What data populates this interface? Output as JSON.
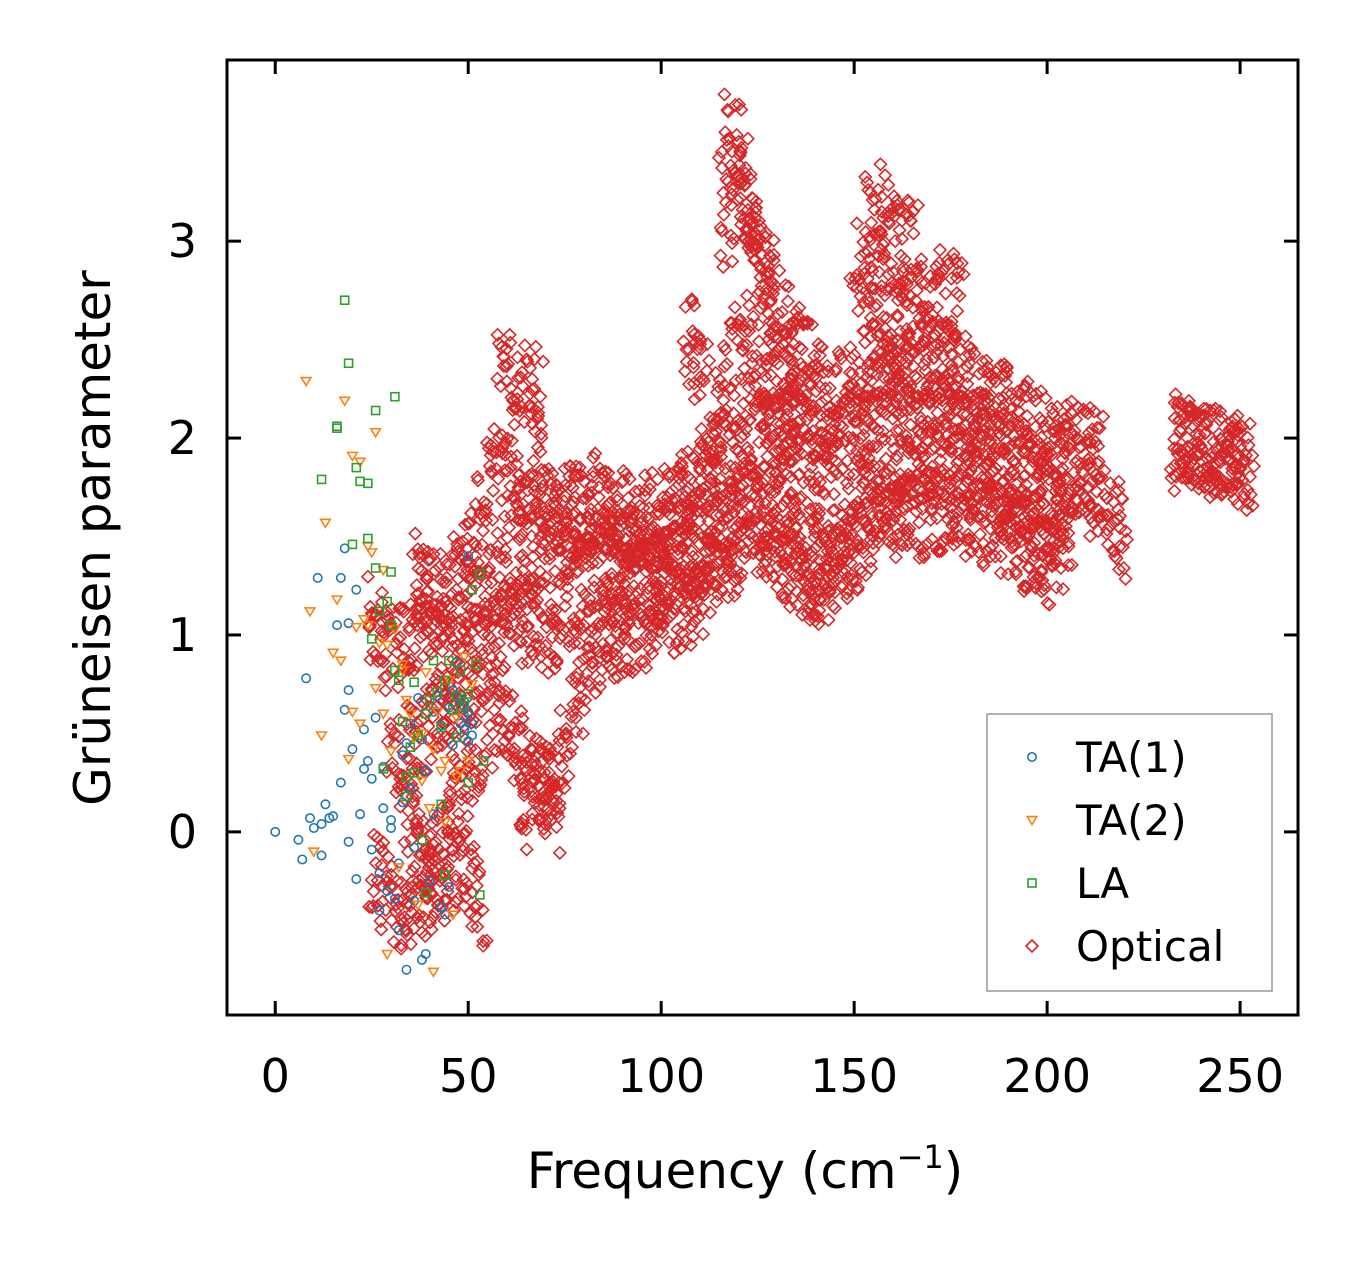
{
  "chart_data": {
    "type": "scatter",
    "xlabel": "Frequency (cm",
    "xlabel_sup": "−1",
    "xlabel_end": ")",
    "ylabel": "Grüneisen parameter",
    "xlim": [
      -12.5,
      265
    ],
    "ylim": [
      -0.93,
      3.92
    ],
    "xticks": [
      0,
      50,
      100,
      150,
      200,
      250
    ],
    "yticks": [
      0,
      1,
      2,
      3
    ],
    "legend_position": "lower-right",
    "series": [
      {
        "name": "TA(1)",
        "marker": "circle",
        "color": "#1f77b4",
        "x": [
          0,
          6,
          7,
          9,
          11,
          12,
          13,
          15,
          16,
          17,
          18,
          18,
          19,
          19,
          20,
          21,
          22,
          23,
          24,
          25,
          25,
          26,
          27,
          28,
          28,
          29,
          30,
          31,
          32,
          33,
          33,
          34,
          35,
          35,
          36,
          37,
          38,
          39,
          40,
          41,
          41,
          42,
          43,
          44,
          45,
          46,
          46,
          47,
          48,
          48,
          49,
          49,
          50,
          50,
          50,
          51,
          51,
          8,
          10,
          12,
          14,
          17,
          19,
          21,
          23,
          27,
          30,
          32,
          36,
          39,
          43,
          47,
          34,
          38,
          45,
          49
        ],
        "y": [
          0.0,
          -0.04,
          -0.14,
          0.07,
          1.29,
          0.04,
          0.14,
          0.08,
          1.05,
          1.29,
          0.62,
          1.44,
          -0.05,
          0.72,
          0.42,
          1.23,
          0.09,
          0.52,
          0.36,
          0.27,
          -0.09,
          0.58,
          -0.4,
          0.12,
          0.33,
          -0.3,
          0.02,
          -0.34,
          -0.16,
          0.15,
          0.39,
          0.45,
          0.55,
          0.22,
          -0.35,
          0.68,
          0.47,
          0.31,
          -0.25,
          0.61,
          0.09,
          0.69,
          0.54,
          -0.42,
          0.63,
          0.72,
          0.44,
          0.48,
          0.55,
          0.67,
          0.52,
          0.59,
          0.46,
          1.4,
          0.61,
          0.55,
          0.49,
          0.78,
          0.02,
          -0.12,
          0.07,
          0.25,
          1.06,
          -0.24,
          0.32,
          -0.21,
          0.06,
          -0.5,
          -0.08,
          -0.62,
          -0.38,
          0.86,
          -0.7,
          -0.65,
          -0.28,
          0.66
        ]
      },
      {
        "name": "TA(2)",
        "marker": "triangle-down",
        "color": "#ff7f0e",
        "x": [
          8,
          9,
          10,
          13,
          15,
          17,
          18,
          19,
          20,
          21,
          22,
          23,
          24,
          25,
          26,
          27,
          28,
          28,
          29,
          30,
          31,
          32,
          33,
          34,
          35,
          36,
          37,
          38,
          39,
          40,
          41,
          42,
          43,
          44,
          45,
          46,
          47,
          48,
          49,
          50,
          51,
          24,
          26,
          29,
          33,
          38,
          41,
          44,
          47,
          12,
          16,
          20,
          22
        ],
        "y": [
          2.29,
          1.12,
          -0.1,
          1.57,
          0.91,
          0.87,
          2.19,
          0.37,
          1.91,
          1.04,
          0.55,
          1.08,
          1.45,
          1.42,
          0.73,
          0.96,
          1.33,
          0.6,
          -0.62,
          0.41,
          1.03,
          -0.18,
          0.85,
          0.67,
          0.6,
          0.48,
          -0.37,
          0.26,
          0.81,
          0.12,
          -0.71,
          0.61,
          0.31,
          0.05,
          0.77,
          -0.42,
          0.58,
          0.31,
          0.89,
          0.36,
          0.75,
          1.05,
          2.03,
          0.95,
          0.82,
          0.5,
          0.42,
          0.36,
          0.28,
          0.49,
          1.18,
          0.61,
          1.88
        ]
      },
      {
        "name": "LA",
        "marker": "square",
        "color": "#2ca02c",
        "x": [
          12,
          16,
          18,
          19,
          20,
          21,
          22,
          24,
          25,
          26,
          27,
          28,
          29,
          30,
          31,
          31,
          32,
          33,
          34,
          35,
          36,
          37,
          38,
          39,
          40,
          41,
          42,
          43,
          44,
          45,
          46,
          47,
          48,
          49,
          50,
          51,
          52,
          53,
          54,
          16,
          26,
          30,
          34,
          39,
          43,
          47,
          50,
          53,
          24,
          36,
          44
        ],
        "y": [
          1.79,
          2.05,
          2.7,
          2.38,
          1.46,
          1.85,
          1.78,
          1.49,
          0.98,
          1.34,
          1.12,
          0.32,
          1.17,
          1.32,
          2.21,
          0.82,
          0.77,
          0.56,
          0.28,
          0.43,
          0.76,
          0.49,
          -0.04,
          0.6,
          0.67,
          0.87,
          0.71,
          0.53,
          0.77,
          0.87,
          0.62,
          0.69,
          0.82,
          0.64,
          0.7,
          1.23,
          0.85,
          1.31,
          0.36,
          2.06,
          2.14,
          1.05,
          0.18,
          -0.31,
          0.14,
          0.48,
          0.25,
          -0.32,
          1.77,
          0.3,
          -0.22
        ]
      },
      {
        "name": "Optical",
        "marker": "diamond",
        "color": "#d62728",
        "x": [],
        "y": [],
        "dense_curves": [
          [
            [
              24,
              1.1
            ],
            [
              30,
              0.9
            ],
            [
              38,
              1.0
            ],
            [
              44,
              0.9
            ],
            [
              50,
              1.1
            ],
            [
              55,
              1.2
            ],
            [
              62,
              1.4
            ],
            [
              70,
              1.5
            ],
            [
              80,
              1.5
            ],
            [
              90,
              1.4
            ],
            [
              100,
              1.45
            ],
            [
              110,
              1.55
            ],
            [
              116,
              1.75
            ],
            [
              120,
              2.0
            ],
            [
              128,
              2.0
            ],
            [
              134,
              1.9
            ],
            [
              140,
              1.75
            ],
            [
              146,
              1.9
            ],
            [
              152,
              2.1
            ],
            [
              158,
              2.2
            ],
            [
              166,
              2.1
            ],
            [
              172,
              2.2
            ],
            [
              178,
              2.1
            ],
            [
              186,
              2.0
            ],
            [
              194,
              1.85
            ],
            [
              202,
              1.75
            ],
            [
              210,
              1.8
            ],
            [
              216,
              1.6
            ],
            [
              221,
              1.5
            ]
          ],
          [
            [
              30,
              0.3
            ],
            [
              38,
              0.5
            ],
            [
              46,
              0.6
            ],
            [
              54,
              0.9
            ],
            [
              62,
              1.1
            ],
            [
              70,
              1.0
            ],
            [
              78,
              1.2
            ],
            [
              86,
              1.3
            ],
            [
              96,
              1.25
            ],
            [
              106,
              1.35
            ],
            [
              116,
              1.5
            ],
            [
              122,
              1.7
            ],
            [
              130,
              1.6
            ],
            [
              136,
              1.5
            ],
            [
              142,
              1.4
            ],
            [
              150,
              1.6
            ],
            [
              158,
              1.8
            ],
            [
              166,
              1.85
            ],
            [
              174,
              1.9
            ],
            [
              182,
              1.8
            ],
            [
              190,
              1.7
            ],
            [
              198,
              1.6
            ],
            [
              206,
              1.55
            ]
          ],
          [
            [
              36,
              1.3
            ],
            [
              44,
              1.2
            ],
            [
              52,
              1.5
            ],
            [
              58,
              1.9
            ],
            [
              64,
              1.7
            ],
            [
              72,
              1.6
            ],
            [
              82,
              1.7
            ],
            [
              92,
              1.6
            ],
            [
              104,
              1.65
            ],
            [
              112,
              1.8
            ],
            [
              118,
              2.3
            ],
            [
              120,
              2.6
            ],
            [
              124,
              2.4
            ],
            [
              130,
              2.1
            ],
            [
              138,
              2.1
            ],
            [
              146,
              2.2
            ],
            [
              154,
              2.4
            ],
            [
              160,
              2.3
            ],
            [
              168,
              2.4
            ],
            [
              176,
              2.35
            ],
            [
              184,
              2.2
            ],
            [
              192,
              2.1
            ],
            [
              200,
              2.0
            ],
            [
              208,
              1.95
            ],
            [
              214,
              2.0
            ]
          ],
          [
            [
              34,
              0.1
            ],
            [
              40,
              -0.2
            ],
            [
              46,
              0.1
            ],
            [
              52,
              0.4
            ],
            [
              58,
              0.6
            ],
            [
              66,
              0.3
            ],
            [
              72,
              0.2
            ],
            [
              78,
              0.7
            ],
            [
              86,
              1.0
            ],
            [
              94,
              1.0
            ],
            [
              102,
              1.05
            ],
            [
              110,
              1.2
            ],
            [
              116,
              1.35
            ],
            [
              124,
              1.5
            ],
            [
              132,
              1.4
            ],
            [
              138,
              1.3
            ],
            [
              142,
              1.25
            ],
            [
              148,
              1.4
            ],
            [
              156,
              1.55
            ],
            [
              164,
              1.6
            ],
            [
              172,
              1.65
            ],
            [
              180,
              1.6
            ],
            [
              190,
              1.5
            ],
            [
              198,
              1.4
            ],
            [
              204,
              1.3
            ]
          ],
          [
            [
              116,
              3.4
            ],
            [
              118,
              3.6
            ],
            [
              120,
              3.45
            ],
            [
              122,
              3.2
            ],
            [
              126,
              2.9
            ],
            [
              130,
              2.7
            ],
            [
              134,
              2.5
            ],
            [
              138,
              2.4
            ],
            [
              142,
              2.3
            ]
          ],
          [
            [
              116,
              3.0
            ],
            [
              120,
              3.3
            ],
            [
              124,
              3.1
            ],
            [
              128,
              2.7
            ],
            [
              132,
              2.3
            ],
            [
              136,
              2.1
            ]
          ],
          [
            [
              154,
              3.25
            ],
            [
              158,
              3.1
            ],
            [
              162,
              3.0
            ],
            [
              166,
              3.0
            ]
          ],
          [
            [
              150,
              2.9
            ],
            [
              156,
              2.8
            ],
            [
              162,
              2.6
            ],
            [
              168,
              2.7
            ],
            [
              174,
              2.75
            ],
            [
              178,
              2.7
            ]
          ],
          [
            [
              232,
              2.0
            ],
            [
              236,
              2.0
            ],
            [
              240,
              1.97
            ],
            [
              244,
              1.94
            ],
            [
              248,
              1.9
            ],
            [
              252,
              1.85
            ]
          ],
          [
            [
              233,
              1.95
            ],
            [
              238,
              1.96
            ],
            [
              242,
              1.93
            ],
            [
              246,
              1.9
            ],
            [
              250,
              1.86
            ],
            [
              253,
              1.8
            ]
          ],
          [
            [
              58,
              2.4
            ],
            [
              62,
              2.2
            ],
            [
              66,
              2.3
            ],
            [
              70,
              2.1
            ]
          ],
          [
            [
              106,
              2.6
            ],
            [
              108,
              2.5
            ],
            [
              110,
              2.4
            ],
            [
              112,
              2.2
            ],
            [
              114,
              2.1
            ]
          ],
          [
            [
              64,
              0.0
            ],
            [
              68,
              0.3
            ],
            [
              72,
              0.15
            ],
            [
              74,
              0.1
            ]
          ],
          [
            [
              25,
              -0.2
            ],
            [
              32,
              -0.4
            ],
            [
              40,
              -0.3
            ],
            [
              48,
              -0.2
            ],
            [
              54,
              -0.4
            ]
          ]
        ]
      }
    ]
  }
}
